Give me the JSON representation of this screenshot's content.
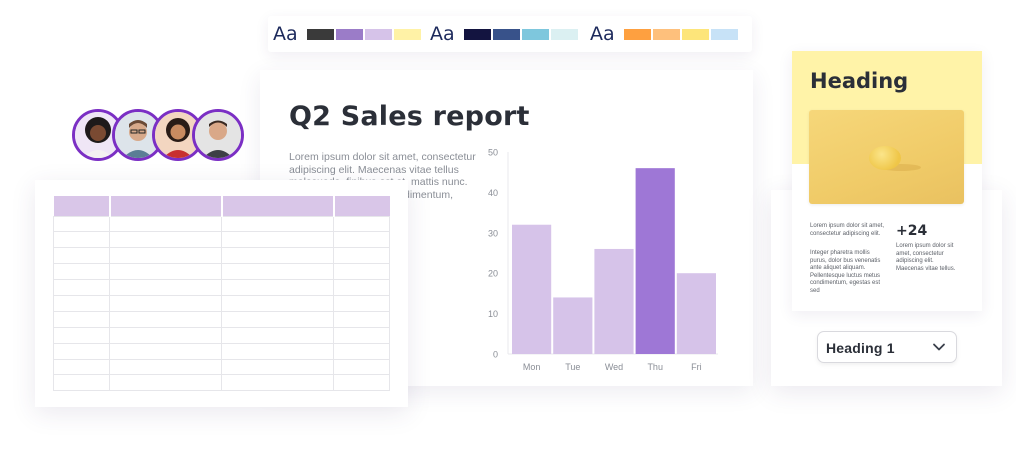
{
  "palettes": [
    {
      "label": "Aa",
      "colors": [
        "#3a3a3a",
        "#9b7cc8",
        "#d6c3e9",
        "#fff2a6"
      ]
    },
    {
      "label": "Aa",
      "colors": [
        "#131440",
        "#38528a",
        "#7ec7dd",
        "#dbf0f2"
      ]
    },
    {
      "label": "Aa",
      "colors": [
        "#fea040",
        "#fec07c",
        "#fde57a",
        "#c7e2f7"
      ]
    }
  ],
  "report": {
    "title": "Q2 Sales report",
    "body": "Lorem ipsum dolor sit amet, consectetur adipiscing elit. Maecenas vitae tellus malesuada, finibus est at, mattis nunc. ...uam. ... dapibus ... condimentum,"
  },
  "chart_data": {
    "type": "bar",
    "categories": [
      "Mon",
      "Tue",
      "Wed",
      "Thu",
      "Fri"
    ],
    "values": [
      32,
      14,
      26,
      46,
      20
    ],
    "highlight_index": 3,
    "ylim": [
      0,
      50
    ],
    "yticks": [
      "0",
      "10",
      "20",
      "30",
      "40",
      "50"
    ],
    "bar_color": "#d6c3e9",
    "highlight_color": "#9e77d6",
    "title": "",
    "xlabel": "",
    "ylabel": ""
  },
  "avatars": [
    "avatar-1",
    "avatar-2",
    "avatar-3",
    "avatar-4"
  ],
  "table": {
    "columns": 4,
    "rows": 11,
    "header_color": "#d9c6e8"
  },
  "template_card": {
    "heading": "Heading",
    "left_text_1": "Lorem ipsum dolor sit amet, consectetur adipiscing elit.",
    "left_text_2": "Integer pharetra mollis purus, dolor bus venenatis ante aliquet aliquam. Pellentesque luctus metus condimentum, egestas est sed",
    "stat": "+24",
    "right_text": "Lorem ipsum dolor sit amet, consectetur adipiscing elit. Maecenas vitae tellus."
  },
  "dropdown": {
    "selected": "Heading 1"
  }
}
